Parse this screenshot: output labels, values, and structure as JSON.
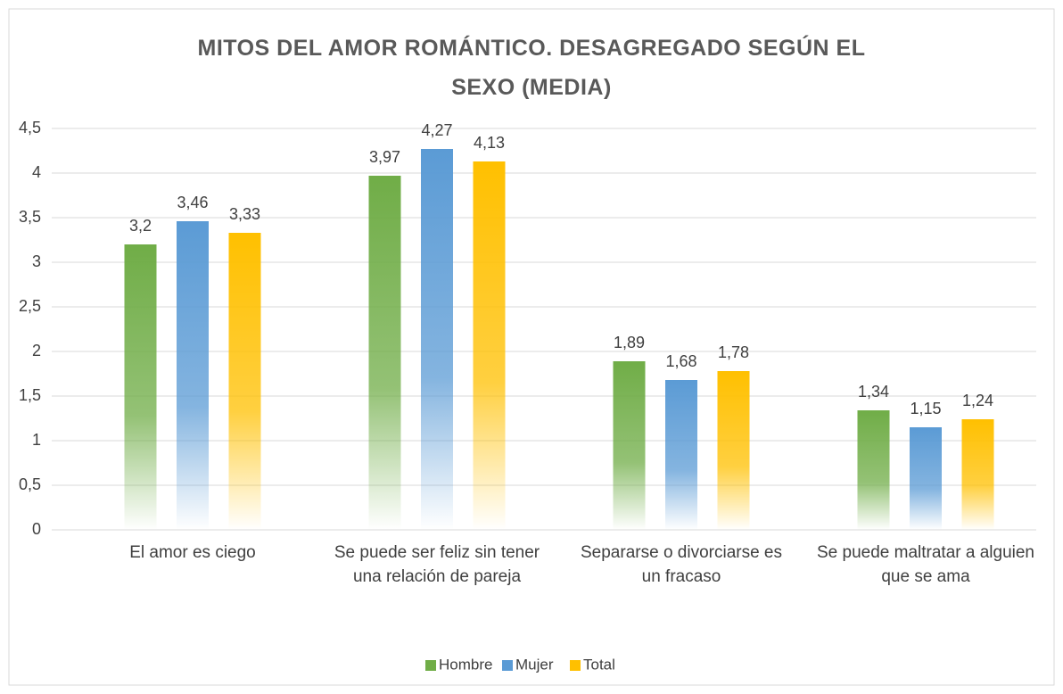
{
  "chart_data": {
    "type": "bar",
    "title": "MITOS DEL AMOR ROMÁNTICO. DESAGREGADO SEGÚN EL SEXO (MEDIA)",
    "categories": [
      "El amor es ciego",
      "Se puede ser feliz sin tener una relación de pareja",
      "Separarse o divorciarse es un fracaso",
      "Se puede maltratar a alguien que se ama"
    ],
    "series": [
      {
        "name": "Hombre",
        "color": "#70ad47",
        "values": [
          3.2,
          3.97,
          1.89,
          1.34
        ],
        "value_labels": [
          "3,2",
          "3,97",
          "1,89",
          "1,34"
        ]
      },
      {
        "name": "Mujer",
        "color": "#5b9bd5",
        "values": [
          3.46,
          4.27,
          1.68,
          1.15
        ],
        "value_labels": [
          "3,46",
          "4,27",
          "1,68",
          "1,15"
        ]
      },
      {
        "name": "Total",
        "color": "#ffc000",
        "values": [
          3.33,
          4.13,
          1.78,
          1.24
        ],
        "value_labels": [
          "3,33",
          "4,13",
          "1,78",
          "1,24"
        ]
      }
    ],
    "ylim": [
      0,
      4.5
    ],
    "yticks": [
      0,
      {
        "value": 0.5,
        "label": "0,5"
      },
      1,
      {
        "value": 1.5,
        "label": "1,5"
      },
      2,
      {
        "value": 2.5,
        "label": "2,5"
      },
      3,
      {
        "value": 3.5,
        "label": "3,5"
      },
      4,
      {
        "value": 4.5,
        "label": "4,5"
      }
    ],
    "grid": true,
    "legend": "bottom"
  }
}
